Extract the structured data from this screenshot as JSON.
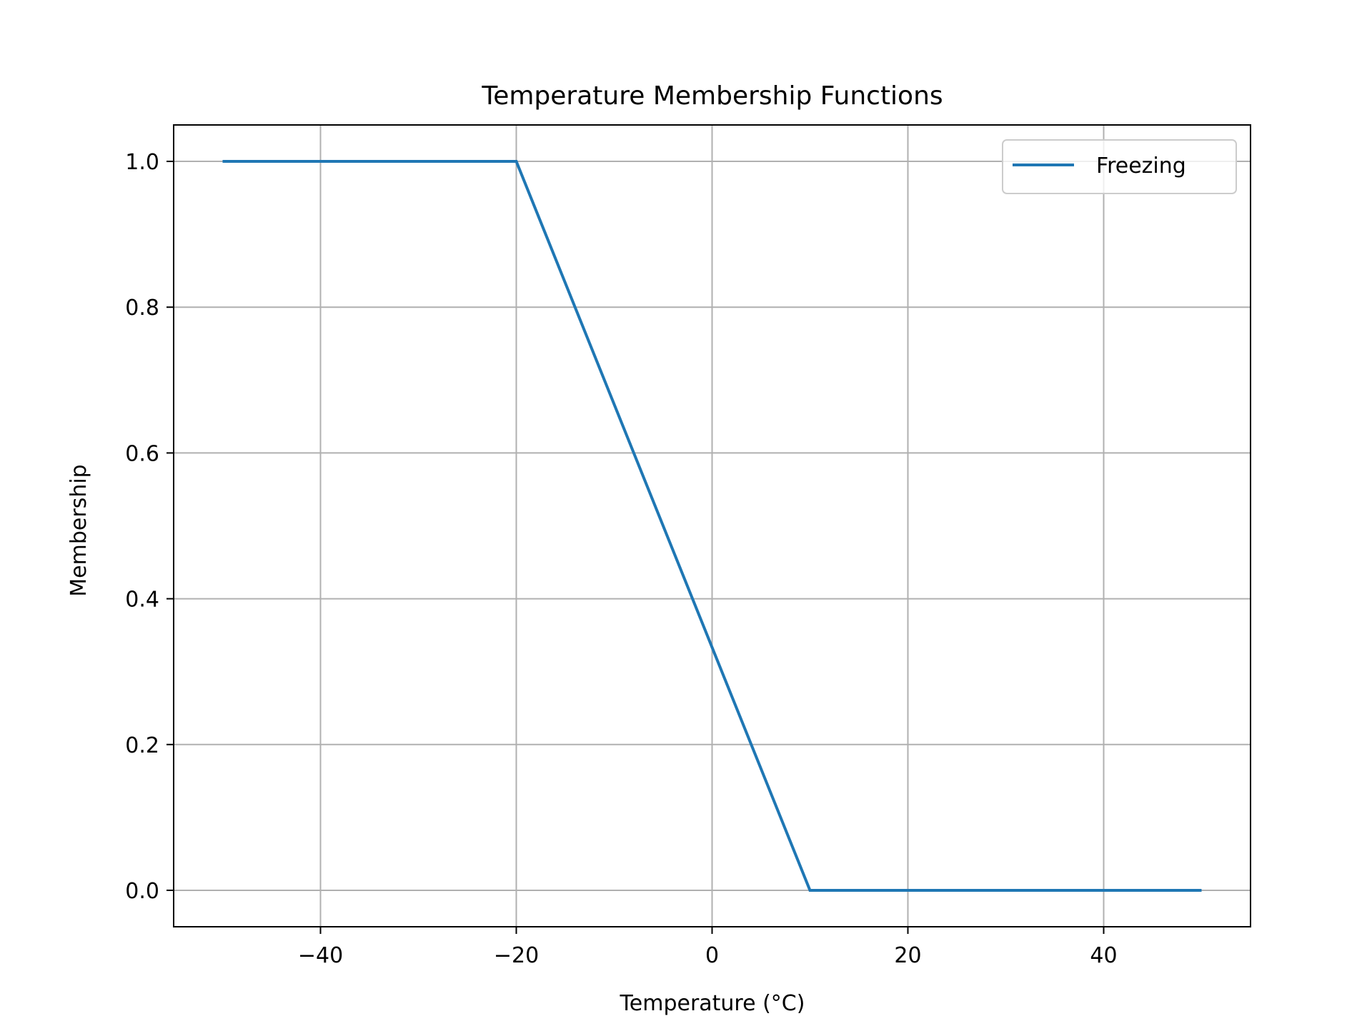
{
  "colors": {
    "series": "#1f77b4",
    "grid": "#b0b0b0",
    "axes": "#000000",
    "background": "#ffffff",
    "legend_border": "#cccccc"
  },
  "chart_data": {
    "type": "line",
    "title": "Temperature Membership Functions",
    "xlabel": "Temperature (°C)",
    "ylabel": "Membership",
    "xlim": [
      -55,
      55
    ],
    "ylim": [
      -0.05,
      1.05
    ],
    "xticks": [
      -40,
      -20,
      0,
      20,
      40
    ],
    "xtick_labels": [
      "−40",
      "−20",
      "0",
      "20",
      "40"
    ],
    "yticks": [
      0.0,
      0.2,
      0.4,
      0.6,
      0.8,
      1.0
    ],
    "ytick_labels": [
      "0.0",
      "0.2",
      "0.4",
      "0.6",
      "0.8",
      "1.0"
    ],
    "grid": true,
    "legend_position": "top-right",
    "series": [
      {
        "name": "Freezing",
        "x": [
          -50,
          -20,
          10,
          50
        ],
        "y": [
          1.0,
          1.0,
          0.0,
          0.0
        ]
      }
    ]
  }
}
